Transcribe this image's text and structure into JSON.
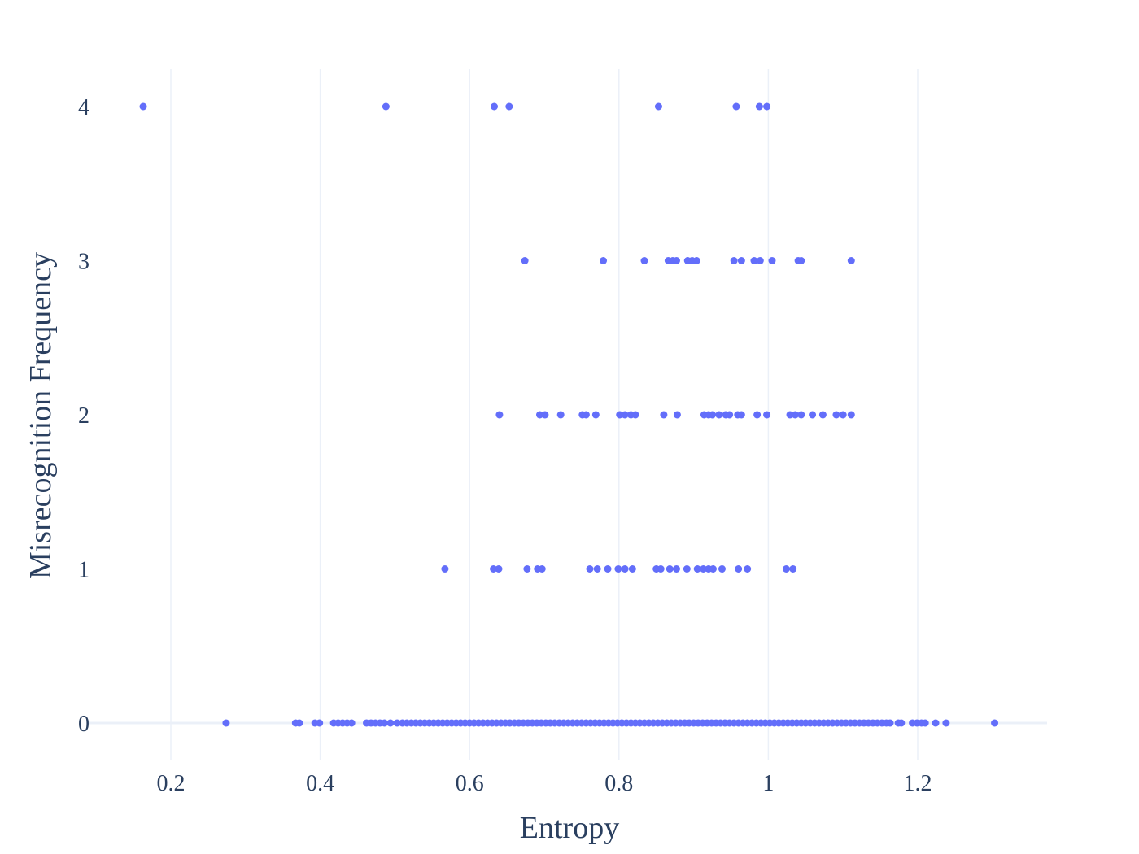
{
  "chart_data": {
    "type": "scatter",
    "title": "",
    "xlabel": "Entropy",
    "ylabel": "Misrecognition Frequency",
    "xlim": [
      0.1,
      1.37
    ],
    "ylim": [
      -0.3,
      4.25
    ],
    "x_ticks": [
      {
        "value": 0.2,
        "label": "0.2"
      },
      {
        "value": 0.4,
        "label": "0.4"
      },
      {
        "value": 0.6,
        "label": "0.6"
      },
      {
        "value": 0.8,
        "label": "0.8"
      },
      {
        "value": 1.0,
        "label": "1"
      },
      {
        "value": 1.2,
        "label": "1.2"
      }
    ],
    "y_ticks": [
      {
        "value": 0,
        "label": "0"
      },
      {
        "value": 1,
        "label": "1"
      },
      {
        "value": 2,
        "label": "2"
      },
      {
        "value": 3,
        "label": "3"
      },
      {
        "value": 4,
        "label": "4"
      }
    ],
    "grid": "vertical",
    "legend": "none",
    "colors": {
      "marker": "#636efa",
      "grid": "#ebf0f8",
      "zeroline": "#ebf0f8",
      "text": "#2a3f5f"
    },
    "series": [
      {
        "points": [
          {
            "x": 0.163,
            "y": 4
          },
          {
            "x": 0.488,
            "y": 4
          },
          {
            "x": 0.633,
            "y": 4
          },
          {
            "x": 0.653,
            "y": 4
          },
          {
            "x": 0.853,
            "y": 4
          },
          {
            "x": 0.957,
            "y": 4
          },
          {
            "x": 0.988,
            "y": 4
          },
          {
            "x": 0.998,
            "y": 4
          },
          {
            "x": 0.674,
            "y": 3
          },
          {
            "x": 0.779,
            "y": 3
          },
          {
            "x": 0.834,
            "y": 3
          },
          {
            "x": 0.866,
            "y": 3
          },
          {
            "x": 0.872,
            "y": 3
          },
          {
            "x": 0.877,
            "y": 3
          },
          {
            "x": 0.892,
            "y": 3
          },
          {
            "x": 0.898,
            "y": 3
          },
          {
            "x": 0.904,
            "y": 3
          },
          {
            "x": 0.954,
            "y": 3
          },
          {
            "x": 0.964,
            "y": 3
          },
          {
            "x": 0.981,
            "y": 3
          },
          {
            "x": 0.989,
            "y": 3
          },
          {
            "x": 1.005,
            "y": 3
          },
          {
            "x": 1.04,
            "y": 3
          },
          {
            "x": 1.044,
            "y": 3
          },
          {
            "x": 1.111,
            "y": 3
          },
          {
            "x": 0.64,
            "y": 2
          },
          {
            "x": 0.694,
            "y": 2
          },
          {
            "x": 0.701,
            "y": 2
          },
          {
            "x": 0.722,
            "y": 2
          },
          {
            "x": 0.751,
            "y": 2
          },
          {
            "x": 0.756,
            "y": 2
          },
          {
            "x": 0.769,
            "y": 2
          },
          {
            "x": 0.801,
            "y": 2
          },
          {
            "x": 0.808,
            "y": 2
          },
          {
            "x": 0.816,
            "y": 2
          },
          {
            "x": 0.822,
            "y": 2
          },
          {
            "x": 0.86,
            "y": 2
          },
          {
            "x": 0.878,
            "y": 2
          },
          {
            "x": 0.914,
            "y": 2
          },
          {
            "x": 0.92,
            "y": 2
          },
          {
            "x": 0.925,
            "y": 2
          },
          {
            "x": 0.934,
            "y": 2
          },
          {
            "x": 0.943,
            "y": 2
          },
          {
            "x": 0.948,
            "y": 2
          },
          {
            "x": 0.959,
            "y": 2
          },
          {
            "x": 0.964,
            "y": 2
          },
          {
            "x": 0.985,
            "y": 2
          },
          {
            "x": 0.998,
            "y": 2
          },
          {
            "x": 1.029,
            "y": 2
          },
          {
            "x": 1.036,
            "y": 2
          },
          {
            "x": 1.044,
            "y": 2
          },
          {
            "x": 1.059,
            "y": 2
          },
          {
            "x": 1.073,
            "y": 2
          },
          {
            "x": 1.091,
            "y": 2
          },
          {
            "x": 1.1,
            "y": 2
          },
          {
            "x": 1.111,
            "y": 2
          },
          {
            "x": 0.567,
            "y": 1
          },
          {
            "x": 0.632,
            "y": 1
          },
          {
            "x": 0.639,
            "y": 1
          },
          {
            "x": 0.677,
            "y": 1
          },
          {
            "x": 0.691,
            "y": 1
          },
          {
            "x": 0.697,
            "y": 1
          },
          {
            "x": 0.761,
            "y": 1
          },
          {
            "x": 0.771,
            "y": 1
          },
          {
            "x": 0.785,
            "y": 1
          },
          {
            "x": 0.799,
            "y": 1
          },
          {
            "x": 0.808,
            "y": 1
          },
          {
            "x": 0.818,
            "y": 1
          },
          {
            "x": 0.85,
            "y": 1
          },
          {
            "x": 0.856,
            "y": 1
          },
          {
            "x": 0.868,
            "y": 1
          },
          {
            "x": 0.877,
            "y": 1
          },
          {
            "x": 0.891,
            "y": 1
          },
          {
            "x": 0.905,
            "y": 1
          },
          {
            "x": 0.913,
            "y": 1
          },
          {
            "x": 0.92,
            "y": 1
          },
          {
            "x": 0.926,
            "y": 1
          },
          {
            "x": 0.938,
            "y": 1
          },
          {
            "x": 0.96,
            "y": 1
          },
          {
            "x": 0.972,
            "y": 1
          },
          {
            "x": 1.024,
            "y": 1
          },
          {
            "x": 1.033,
            "y": 1
          },
          {
            "x": 0.274,
            "y": 0
          },
          {
            "x": 0.367,
            "y": 0
          },
          {
            "x": 0.372,
            "y": 0
          },
          {
            "x": 0.393,
            "y": 0
          },
          {
            "x": 0.399,
            "y": 0
          },
          {
            "x": 0.418,
            "y": 0
          },
          {
            "x": 0.424,
            "y": 0
          },
          {
            "x": 0.43,
            "y": 0
          },
          {
            "x": 0.436,
            "y": 0
          },
          {
            "x": 0.442,
            "y": 0
          },
          {
            "x": 0.462,
            "y": 0
          },
          {
            "x": 0.468,
            "y": 0
          },
          {
            "x": 0.474,
            "y": 0
          },
          {
            "x": 0.48,
            "y": 0
          },
          {
            "x": 0.486,
            "y": 0
          },
          {
            "x": 0.494,
            "y": 0
          },
          {
            "x": 0.503,
            "y": 0
          },
          {
            "x": 0.51,
            "y": 0
          },
          {
            "x": 0.516,
            "y": 0
          },
          {
            "x": 0.522,
            "y": 0
          },
          {
            "x": 0.528,
            "y": 0
          },
          {
            "x": 0.534,
            "y": 0
          },
          {
            "x": 0.54,
            "y": 0
          },
          {
            "x": 0.546,
            "y": 0
          },
          {
            "x": 0.552,
            "y": 0
          },
          {
            "x": 0.558,
            "y": 0
          },
          {
            "x": 0.564,
            "y": 0
          },
          {
            "x": 0.57,
            "y": 0
          },
          {
            "x": 0.576,
            "y": 0
          },
          {
            "x": 0.582,
            "y": 0
          },
          {
            "x": 0.588,
            "y": 0
          },
          {
            "x": 0.594,
            "y": 0
          },
          {
            "x": 0.6,
            "y": 0
          },
          {
            "x": 0.606,
            "y": 0
          },
          {
            "x": 0.612,
            "y": 0
          },
          {
            "x": 0.618,
            "y": 0
          },
          {
            "x": 0.624,
            "y": 0
          },
          {
            "x": 0.63,
            "y": 0
          },
          {
            "x": 0.636,
            "y": 0
          },
          {
            "x": 0.642,
            "y": 0
          },
          {
            "x": 0.648,
            "y": 0
          },
          {
            "x": 0.654,
            "y": 0
          },
          {
            "x": 0.66,
            "y": 0
          },
          {
            "x": 0.666,
            "y": 0
          },
          {
            "x": 0.672,
            "y": 0
          },
          {
            "x": 0.678,
            "y": 0
          },
          {
            "x": 0.684,
            "y": 0
          },
          {
            "x": 0.69,
            "y": 0
          },
          {
            "x": 0.696,
            "y": 0
          },
          {
            "x": 0.702,
            "y": 0
          },
          {
            "x": 0.708,
            "y": 0
          },
          {
            "x": 0.714,
            "y": 0
          },
          {
            "x": 0.72,
            "y": 0
          },
          {
            "x": 0.726,
            "y": 0
          },
          {
            "x": 0.732,
            "y": 0
          },
          {
            "x": 0.738,
            "y": 0
          },
          {
            "x": 0.744,
            "y": 0
          },
          {
            "x": 0.75,
            "y": 0
          },
          {
            "x": 0.756,
            "y": 0
          },
          {
            "x": 0.762,
            "y": 0
          },
          {
            "x": 0.768,
            "y": 0
          },
          {
            "x": 0.774,
            "y": 0
          },
          {
            "x": 0.78,
            "y": 0
          },
          {
            "x": 0.786,
            "y": 0
          },
          {
            "x": 0.792,
            "y": 0
          },
          {
            "x": 0.798,
            "y": 0
          },
          {
            "x": 0.804,
            "y": 0
          },
          {
            "x": 0.81,
            "y": 0
          },
          {
            "x": 0.816,
            "y": 0
          },
          {
            "x": 0.822,
            "y": 0
          },
          {
            "x": 0.828,
            "y": 0
          },
          {
            "x": 0.834,
            "y": 0
          },
          {
            "x": 0.84,
            "y": 0
          },
          {
            "x": 0.846,
            "y": 0
          },
          {
            "x": 0.852,
            "y": 0
          },
          {
            "x": 0.858,
            "y": 0
          },
          {
            "x": 0.864,
            "y": 0
          },
          {
            "x": 0.87,
            "y": 0
          },
          {
            "x": 0.876,
            "y": 0
          },
          {
            "x": 0.882,
            "y": 0
          },
          {
            "x": 0.888,
            "y": 0
          },
          {
            "x": 0.894,
            "y": 0
          },
          {
            "x": 0.9,
            "y": 0
          },
          {
            "x": 0.906,
            "y": 0
          },
          {
            "x": 0.912,
            "y": 0
          },
          {
            "x": 0.918,
            "y": 0
          },
          {
            "x": 0.924,
            "y": 0
          },
          {
            "x": 0.93,
            "y": 0
          },
          {
            "x": 0.936,
            "y": 0
          },
          {
            "x": 0.942,
            "y": 0
          },
          {
            "x": 0.948,
            "y": 0
          },
          {
            "x": 0.954,
            "y": 0
          },
          {
            "x": 0.96,
            "y": 0
          },
          {
            "x": 0.966,
            "y": 0
          },
          {
            "x": 0.972,
            "y": 0
          },
          {
            "x": 0.978,
            "y": 0
          },
          {
            "x": 0.984,
            "y": 0
          },
          {
            "x": 0.99,
            "y": 0
          },
          {
            "x": 0.996,
            "y": 0
          },
          {
            "x": 1.002,
            "y": 0
          },
          {
            "x": 1.008,
            "y": 0
          },
          {
            "x": 1.014,
            "y": 0
          },
          {
            "x": 1.02,
            "y": 0
          },
          {
            "x": 1.026,
            "y": 0
          },
          {
            "x": 1.032,
            "y": 0
          },
          {
            "x": 1.038,
            "y": 0
          },
          {
            "x": 1.044,
            "y": 0
          },
          {
            "x": 1.05,
            "y": 0
          },
          {
            "x": 1.056,
            "y": 0
          },
          {
            "x": 1.062,
            "y": 0
          },
          {
            "x": 1.068,
            "y": 0
          },
          {
            "x": 1.074,
            "y": 0
          },
          {
            "x": 1.08,
            "y": 0
          },
          {
            "x": 1.086,
            "y": 0
          },
          {
            "x": 1.092,
            "y": 0
          },
          {
            "x": 1.098,
            "y": 0
          },
          {
            "x": 1.104,
            "y": 0
          },
          {
            "x": 1.11,
            "y": 0
          },
          {
            "x": 1.116,
            "y": 0
          },
          {
            "x": 1.122,
            "y": 0
          },
          {
            "x": 1.128,
            "y": 0
          },
          {
            "x": 1.134,
            "y": 0
          },
          {
            "x": 1.14,
            "y": 0
          },
          {
            "x": 1.146,
            "y": 0
          },
          {
            "x": 1.152,
            "y": 0
          },
          {
            "x": 1.158,
            "y": 0
          },
          {
            "x": 1.163,
            "y": 0
          },
          {
            "x": 1.174,
            "y": 0
          },
          {
            "x": 1.178,
            "y": 0
          },
          {
            "x": 1.193,
            "y": 0
          },
          {
            "x": 1.199,
            "y": 0
          },
          {
            "x": 1.205,
            "y": 0
          },
          {
            "x": 1.21,
            "y": 0
          },
          {
            "x": 1.224,
            "y": 0
          },
          {
            "x": 1.238,
            "y": 0
          },
          {
            "x": 1.303,
            "y": 0
          }
        ]
      }
    ]
  }
}
